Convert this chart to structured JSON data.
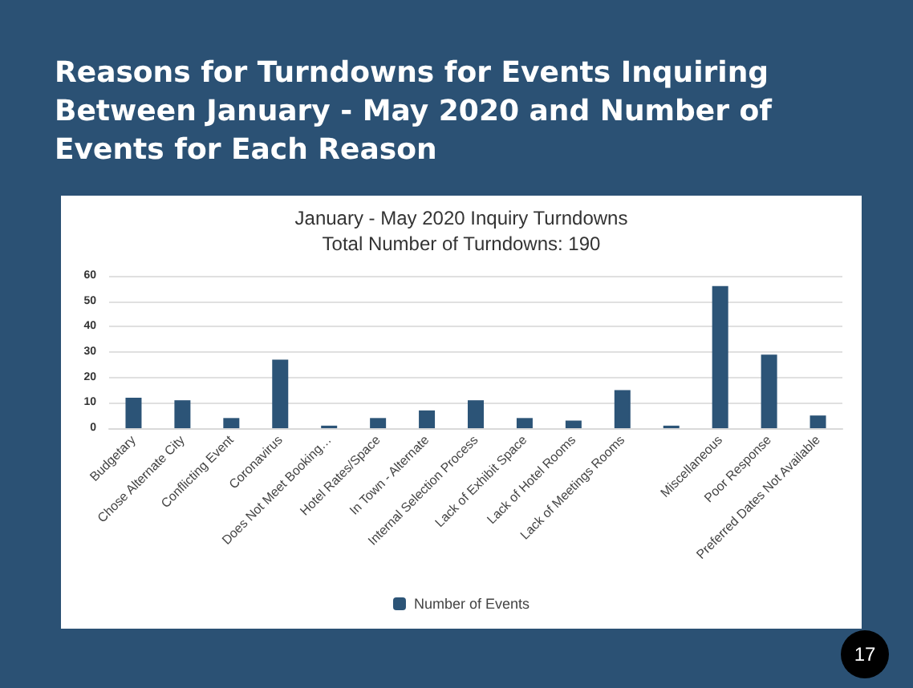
{
  "chart_data": {
    "type": "bar",
    "title": "Reasons for Turndowns for Events Inquiring Between January - May 2020 and Number of Events for Each Reason",
    "subtitle": "January - May 2020 Inquiry Turndowns\nTotal Number of Turndowns: 190",
    "categories": [
      "Budgetary",
      "Chose Alternate City",
      "Conflicting Event",
      "Coronavirus",
      "Does Not Meet Booking…",
      "Hotel Rates/Space",
      "In Town - Alternate",
      "Internal Selection Process",
      "Lack of Exhibit Space",
      "Lack of Hotel Rooms",
      "Lack of Meetings Rooms",
      null,
      "Miscellaneous",
      "Poor Response",
      "Preferred Dates Not Available"
    ],
    "series": [
      {
        "name": "Number of Events",
        "color": "#2c5477",
        "values": [
          12,
          11,
          4,
          27,
          1,
          4,
          7,
          11,
          4,
          3,
          15,
          1,
          56,
          29,
          5
        ]
      }
    ],
    "ylim": [
      0,
      60
    ],
    "yticks": [
      0,
      10,
      20,
      30,
      40,
      50,
      60
    ],
    "grid": "y",
    "legend": "bottom",
    "annotations": [
      "17"
    ]
  }
}
